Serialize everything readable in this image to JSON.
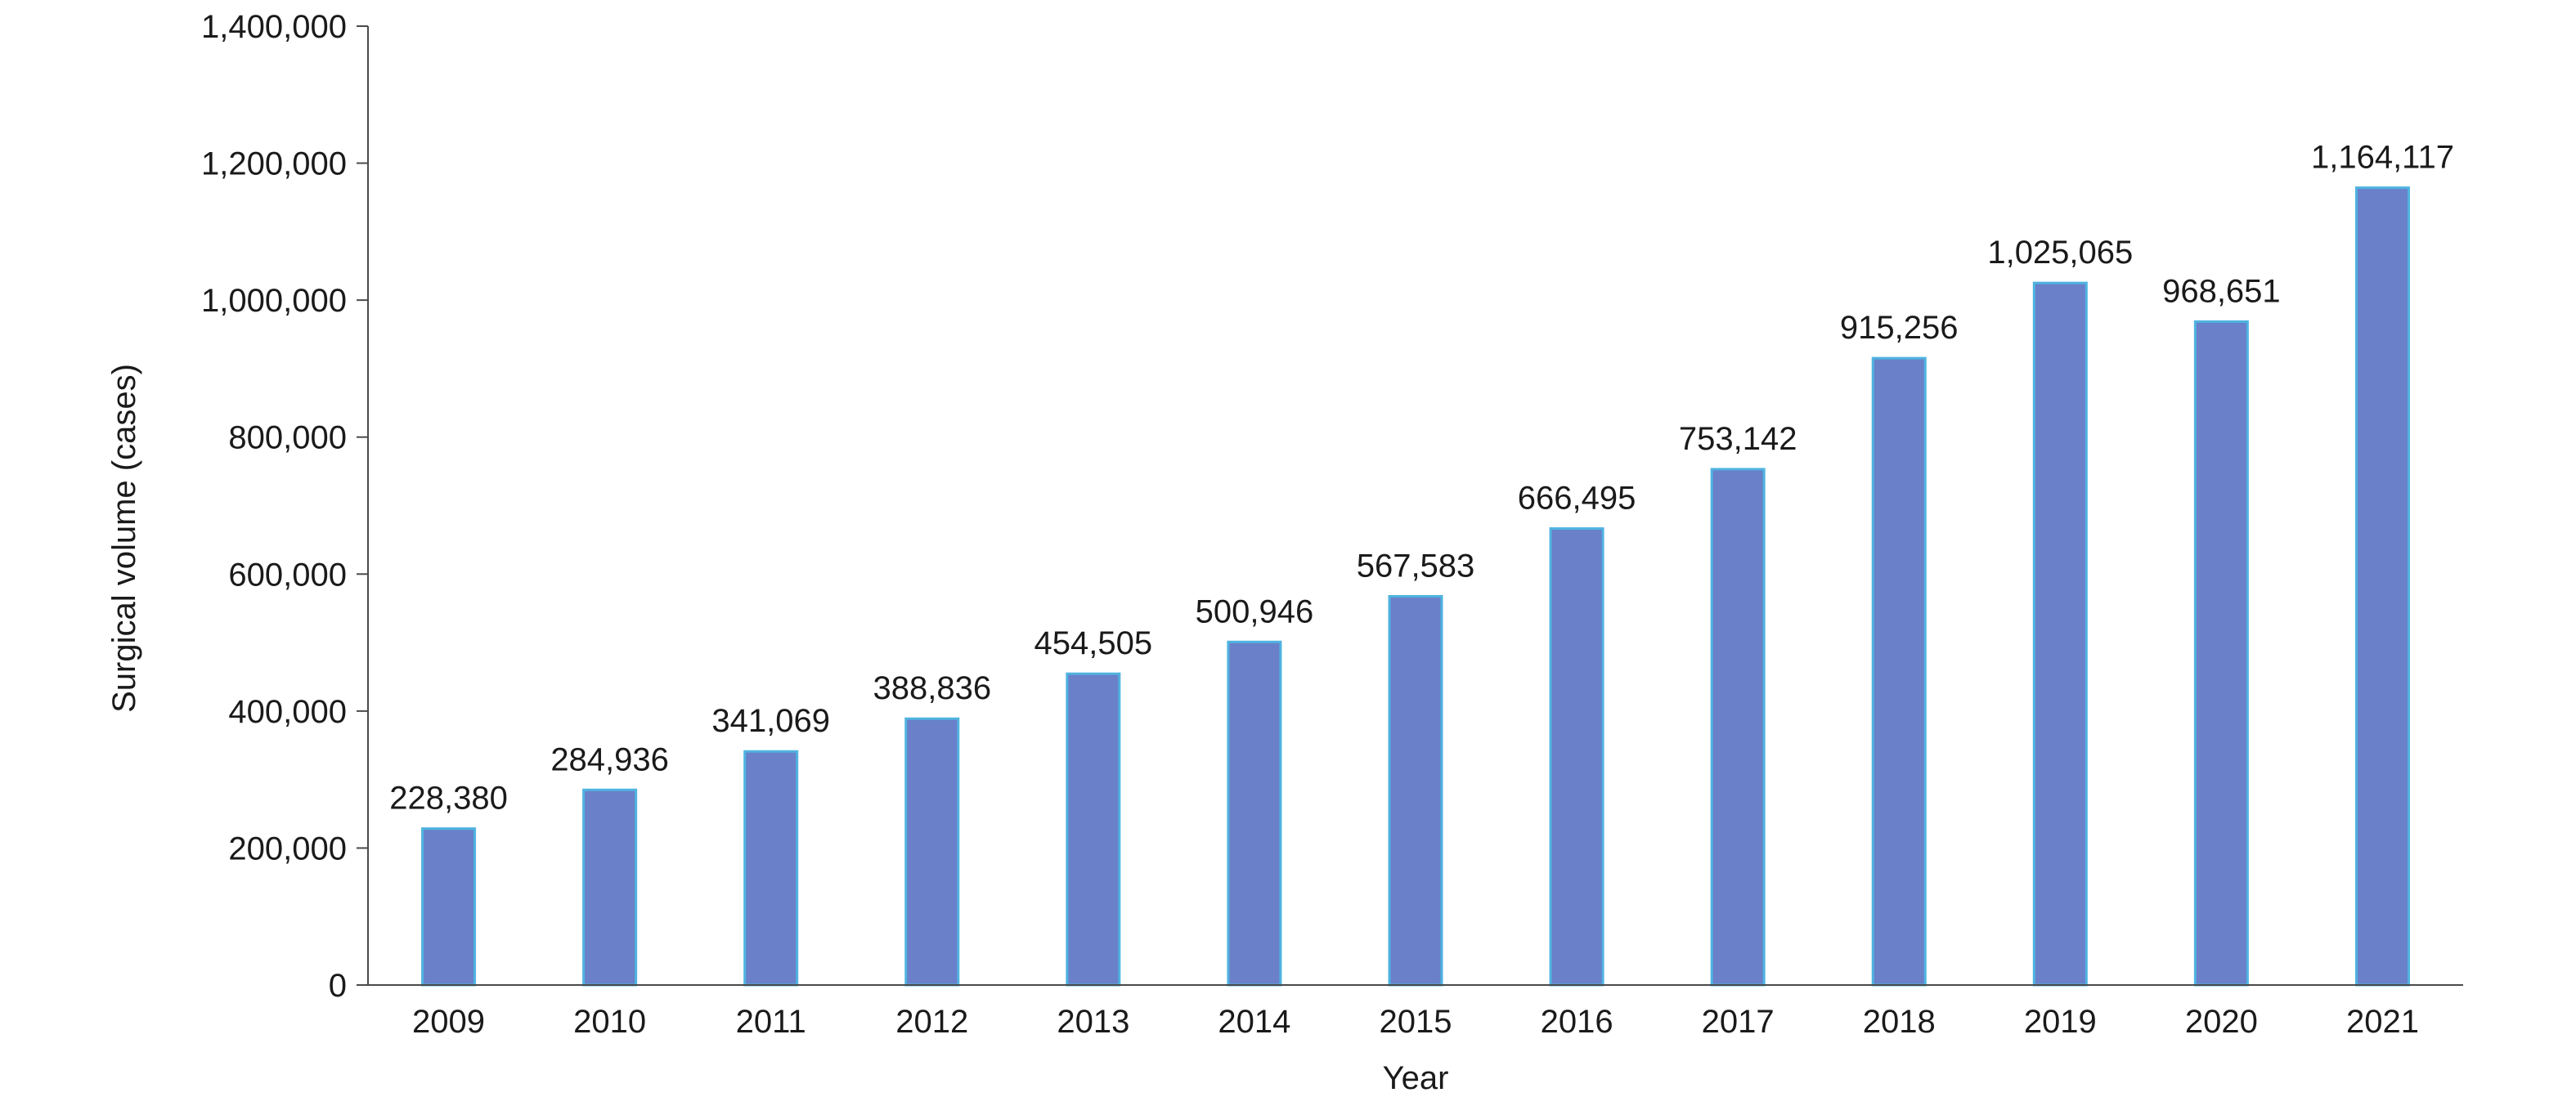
{
  "chart_data": {
    "type": "bar",
    "title": "",
    "xlabel": "Year",
    "ylabel": "Surgical volume (cases)",
    "categories": [
      "2009",
      "2010",
      "2011",
      "2012",
      "2013",
      "2014",
      "2015",
      "2016",
      "2017",
      "2018",
      "2019",
      "2020",
      "2021"
    ],
    "values": [
      228380,
      284936,
      341069,
      388836,
      454505,
      500946,
      567583,
      666495,
      753142,
      915256,
      1025065,
      968651,
      1164117
    ],
    "value_labels": [
      "228,380",
      "284,936",
      "341,069",
      "388,836",
      "454,505",
      "500,946",
      "567,583",
      "666,495",
      "753,142",
      "915,256",
      "1,025,065",
      "968,651",
      "1,164,117"
    ],
    "ylim": [
      0,
      1400000
    ],
    "yticks": [
      0,
      200000,
      400000,
      600000,
      800000,
      1000000,
      1200000,
      1400000
    ],
    "ytick_labels": [
      "0",
      "200,000",
      "400,000",
      "600,000",
      "800,000",
      "1,000,000",
      "1,200,000",
      "1,400,000"
    ],
    "grid": false,
    "legend": "none",
    "colors": {
      "bar": "#6a80c9",
      "bar_edge": "#4fb3e0",
      "axis": "#4a4a4a",
      "text": "#1a1a1a"
    }
  }
}
